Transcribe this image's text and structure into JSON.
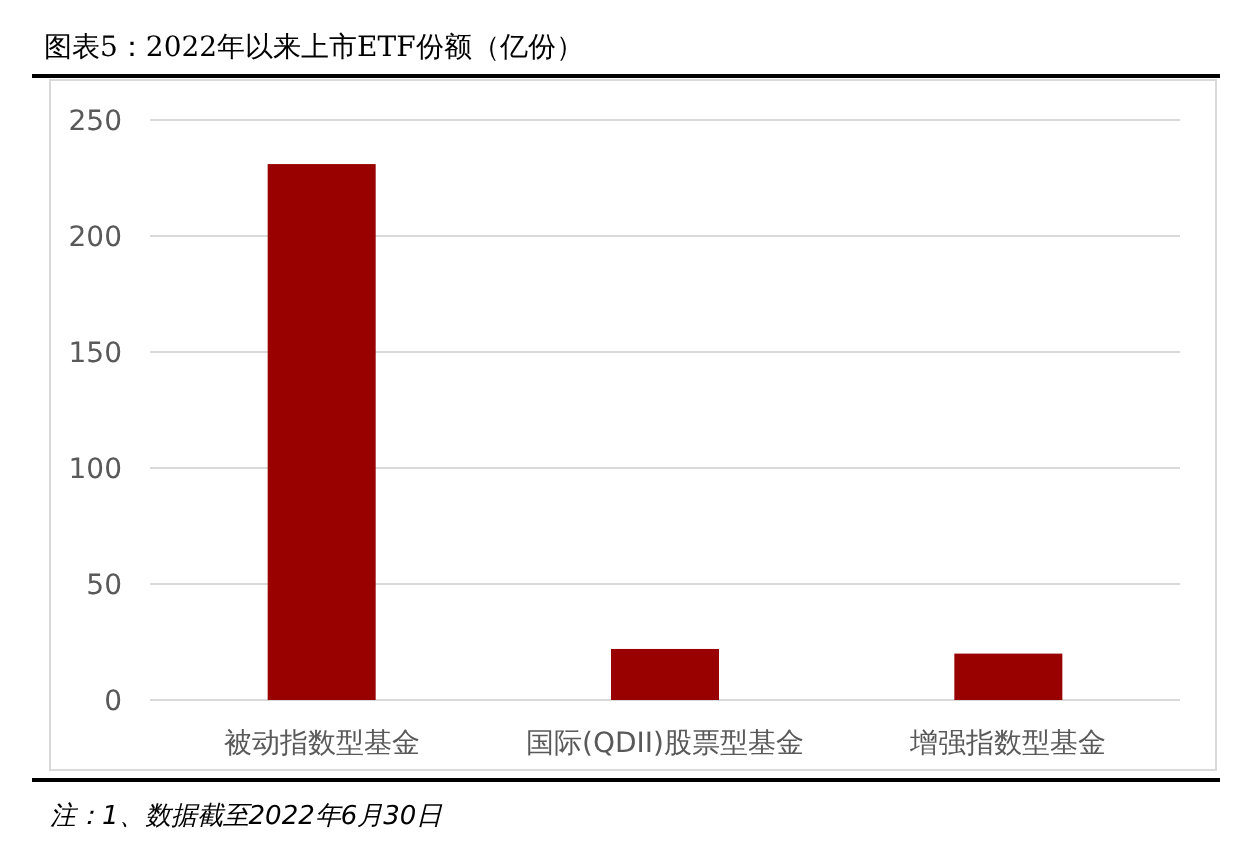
{
  "chart_data": {
    "type": "bar",
    "title": "图表5：2022年以来上市ETF份额（亿份）",
    "categories": [
      "被动指数型基金",
      "国际(QDII)股票型基金",
      "增强指数型基金"
    ],
    "values": [
      231,
      22,
      20
    ],
    "color": "#990000",
    "ylim": [
      0,
      250
    ],
    "yticks": [
      0,
      50,
      100,
      150,
      200,
      250
    ],
    "grid": "y",
    "annotations": [
      "注：1、数据截至2022年6月30日"
    ]
  }
}
